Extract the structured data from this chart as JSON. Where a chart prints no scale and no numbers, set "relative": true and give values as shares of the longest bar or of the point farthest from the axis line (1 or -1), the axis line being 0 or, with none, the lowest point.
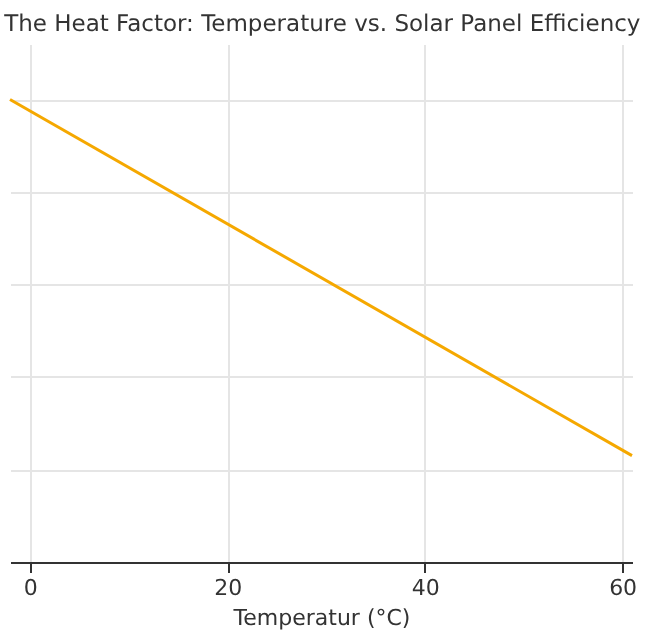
{
  "chart_data": {
    "type": "line",
    "title": "The Heat Factor: Temperature vs. Solar Panel Efficiency",
    "xlabel": "Temperatur (°C)",
    "relative": true,
    "x": [
      -2,
      61
    ],
    "series": [
      {
        "color": "#f5a800",
        "values": [
          1,
          0.23
        ]
      }
    ],
    "xlim": [
      -2,
      61
    ],
    "xticks": [
      0,
      20,
      40,
      60
    ],
    "grid": true,
    "line_style": "solid",
    "marker": "none"
  }
}
